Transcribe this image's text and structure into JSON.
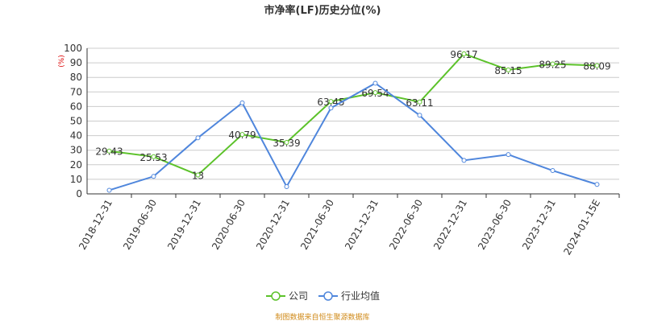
{
  "chart_data": {
    "type": "line",
    "title": "市净率(LF)历史分位(%)",
    "y_label": "(%)",
    "categories": [
      "2018-12-31",
      "2019-06-30",
      "2019-12-31",
      "2020-06-30",
      "2020-12-31",
      "2021-06-30",
      "2021-12-31",
      "2022-06-30",
      "2022-12-31",
      "2023-06-30",
      "2023-12-31",
      "2024-01-15E"
    ],
    "series": [
      {
        "name": "公司",
        "color": "#5cc22a",
        "values": [
          29.43,
          25.53,
          13,
          40.79,
          35.39,
          63.45,
          69.54,
          63.11,
          96.17,
          85.15,
          89.25,
          88.09
        ],
        "show_labels": true
      },
      {
        "name": "行业均值",
        "color": "#4f86dc",
        "values": [
          2.5,
          12,
          38.5,
          62.5,
          5,
          59,
          76,
          54,
          23,
          27,
          16,
          6.5
        ],
        "show_labels": false
      }
    ],
    "ylim": [
      0,
      100
    ],
    "yticks": [
      0,
      10,
      20,
      30,
      40,
      50,
      60,
      70,
      80,
      90,
      100
    ],
    "grid": true,
    "source": "制图数据来自恒生聚源数据库"
  }
}
